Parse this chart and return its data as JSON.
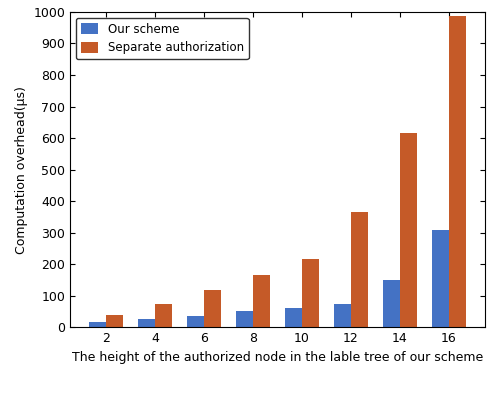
{
  "categories": [
    2,
    4,
    6,
    8,
    10,
    12,
    14,
    16
  ],
  "our_scheme": [
    18,
    27,
    37,
    50,
    60,
    73,
    150,
    308
  ],
  "separate_auth": [
    38,
    73,
    118,
    167,
    217,
    365,
    615,
    988
  ],
  "our_color": "#4472c4",
  "sep_color": "#c55a28",
  "ylabel": "Computation overhead(μs)",
  "xlabel": "The height of the authorized node in the lable tree of our scheme",
  "ylim": [
    0,
    1000
  ],
  "yticks": [
    0,
    100,
    200,
    300,
    400,
    500,
    600,
    700,
    800,
    900,
    1000
  ],
  "legend_our": "Our scheme",
  "legend_sep": "Separate authorization",
  "bar_width": 0.35,
  "figsize": [
    5.0,
    3.99
  ],
  "dpi": 100
}
